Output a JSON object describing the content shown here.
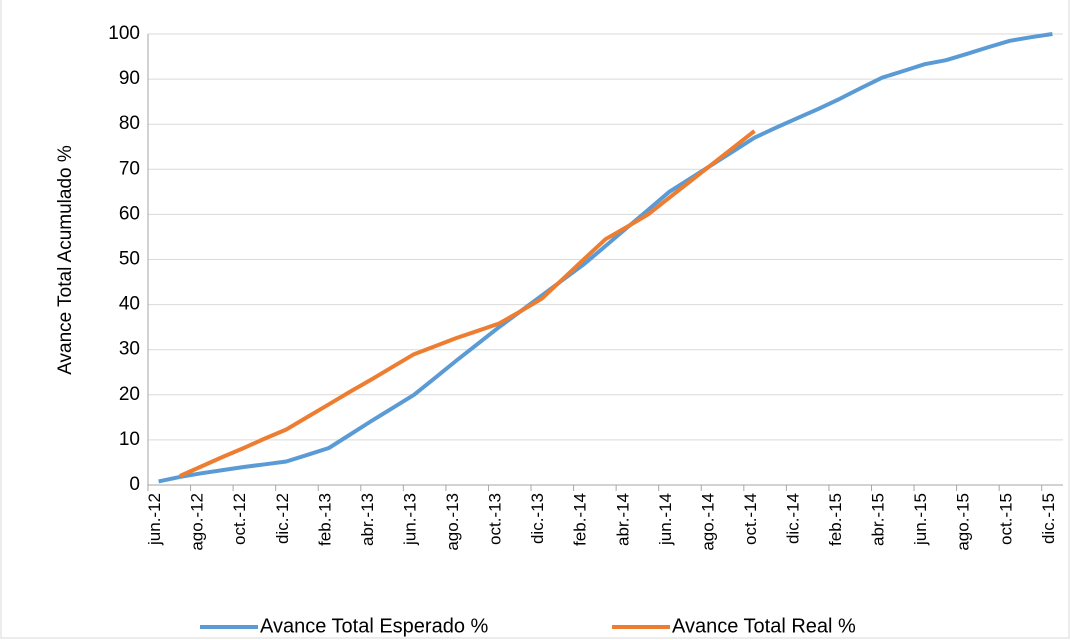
{
  "chart_data": {
    "type": "line",
    "y_label": "Avance Total Acumulado %",
    "categories": [
      "jun.-12",
      null,
      "ago.-12",
      null,
      "oct.-12",
      null,
      "dic.-12",
      null,
      "feb.-13",
      null,
      "abr.-13",
      null,
      "jun.-13",
      null,
      "ago.-13",
      null,
      "oct.-13",
      null,
      "dic.-13",
      null,
      "feb.-14",
      null,
      "abr.-14",
      null,
      "jun.-14",
      null,
      "ago.-14",
      null,
      "oct.-14",
      null,
      "dic.-14",
      null,
      "feb.-15",
      null,
      "abr.-15",
      null,
      "jun.-15",
      null,
      "ago.-15",
      null,
      "oct.-15",
      null,
      "dic.-15"
    ],
    "series": [
      {
        "name": "Avance Total Esperado %",
        "color": "#5b9bd5",
        "values": [
          0.8,
          1.8,
          2.6,
          3.3,
          4.0,
          4.6,
          5.2,
          6.7,
          8.2,
          11.2,
          14.2,
          17.1,
          20,
          23.8,
          27.6,
          31.3,
          35,
          38.5,
          42,
          45.5,
          49,
          53,
          57,
          61,
          65,
          68,
          71,
          74,
          77,
          79.2,
          81.3,
          83.4,
          85.6,
          88,
          90.3,
          91.8,
          93.3,
          94.2,
          95.6,
          97.1,
          98.5,
          99.3,
          100
        ]
      },
      {
        "name": "Avance Total Real %",
        "color": "#ed7d31",
        "values": [
          null,
          2,
          4.1,
          6.2,
          8.2,
          10.3,
          12.3,
          15.1,
          17.9,
          20.7,
          23.4,
          26.2,
          29,
          30.8,
          32.6,
          34.2,
          35.8,
          38.5,
          41.3,
          45.7,
          50.1,
          54.5,
          57.2,
          60,
          63.7,
          67.4,
          71.1,
          74.8,
          78.5,
          null,
          null,
          null,
          null,
          null,
          null,
          null,
          null,
          null,
          null,
          null,
          null,
          null,
          null
        ]
      }
    ],
    "ylim": [
      0,
      100
    ],
    "yticks": [
      0,
      10,
      20,
      30,
      40,
      50,
      60,
      70,
      80,
      90,
      100
    ],
    "grid": true,
    "legend": "bottom"
  }
}
